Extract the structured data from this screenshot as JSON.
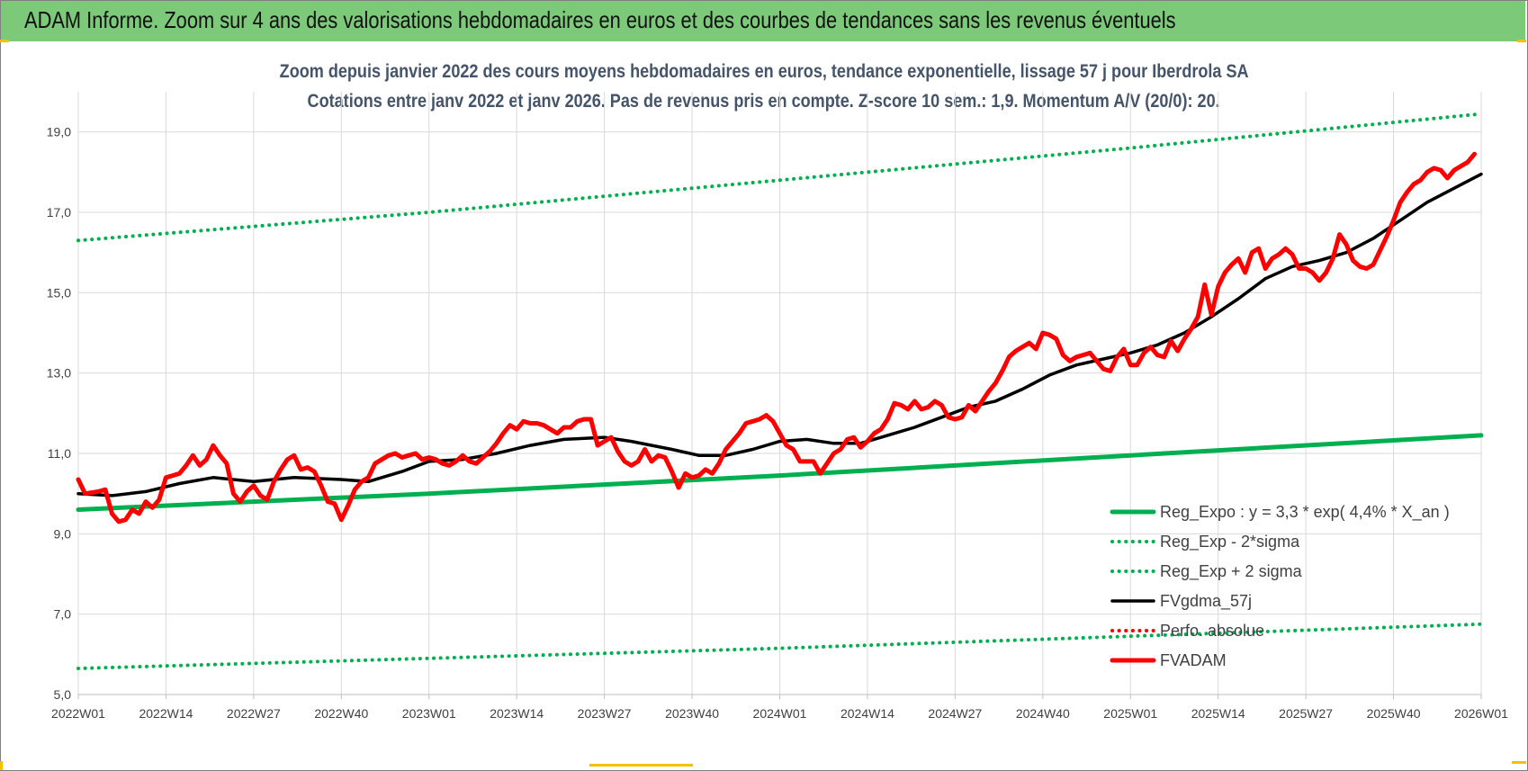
{
  "banner": {
    "title": "ADAM Informe. Zoom sur 4 ans des valorisations hebdomadaires en euros et des courbes de tendances sans les revenus éventuels"
  },
  "colors": {
    "banner": "#7dc97a",
    "trend": "#00b050",
    "bands": "#00b050",
    "smooth": "#000000",
    "perfo": "#ff0000",
    "price": "#ff0000",
    "title_text": "#44546a"
  },
  "chart_data": {
    "type": "line",
    "title": "Zoom depuis janvier 2022 des cours moyens hebdomadaires en euros, tendance exponentielle, lissage 57 j pour Iberdrola SA",
    "subtitle": "Cotations entre janv 2022 et janv 2026. Pas de revenus pris en compte. Z-score 10 sem.: 1,9. Momentum A/V (20/0): 20.",
    "ylim": [
      5,
      20
    ],
    "y_ticks": [
      "5,0",
      "7,0",
      "9,0",
      "11,0",
      "13,0",
      "15,0",
      "17,0",
      "19,0"
    ],
    "x_ticks": [
      "2022W01",
      "2022W14",
      "2022W27",
      "2022W40",
      "2023W01",
      "2023W14",
      "2023W27",
      "2023W40",
      "2024W01",
      "2024W14",
      "2024W27",
      "2024W40",
      "2025W01",
      "2025W14",
      "2025W27",
      "2025W40",
      "2026W01"
    ],
    "x_range_weeks": [
      0,
      208
    ],
    "grid": true,
    "legend_position": "bottom-right",
    "series": [
      {
        "name": "Reg_Expo : y = 3,3 * exp( 4,4% *  X_an )",
        "style": "solid-thick",
        "color": "#00b050",
        "points": [
          [
            0,
            9.6
          ],
          [
            52,
            10.0
          ],
          [
            104,
            10.45
          ],
          [
            156,
            10.95
          ],
          [
            208,
            11.45
          ]
        ]
      },
      {
        "name": "Reg_Exp - 2*sigma",
        "style": "dotted",
        "color": "#00b050",
        "points": [
          [
            0,
            5.65
          ],
          [
            52,
            5.9
          ],
          [
            104,
            6.15
          ],
          [
            156,
            6.45
          ],
          [
            208,
            6.75
          ]
        ]
      },
      {
        "name": "Reg_Exp + 2 sigma",
        "style": "dotted",
        "color": "#00b050",
        "points": [
          [
            0,
            16.3
          ],
          [
            52,
            17.0
          ],
          [
            104,
            17.8
          ],
          [
            156,
            18.6
          ],
          [
            208,
            19.45
          ]
        ]
      },
      {
        "name": "FVgdma_57j",
        "style": "solid",
        "color": "#000000",
        "points": [
          [
            0,
            10.0
          ],
          [
            5,
            9.95
          ],
          [
            10,
            10.05
          ],
          [
            15,
            10.25
          ],
          [
            20,
            10.4
          ],
          [
            26,
            10.3
          ],
          [
            32,
            10.4
          ],
          [
            39,
            10.35
          ],
          [
            43,
            10.3
          ],
          [
            48,
            10.55
          ],
          [
            52,
            10.8
          ],
          [
            57,
            10.85
          ],
          [
            62,
            11.0
          ],
          [
            67,
            11.2
          ],
          [
            72,
            11.35
          ],
          [
            78,
            11.4
          ],
          [
            82,
            11.3
          ],
          [
            88,
            11.1
          ],
          [
            92,
            10.95
          ],
          [
            96,
            10.95
          ],
          [
            100,
            11.1
          ],
          [
            104,
            11.3
          ],
          [
            108,
            11.35
          ],
          [
            112,
            11.25
          ],
          [
            116,
            11.25
          ],
          [
            120,
            11.45
          ],
          [
            124,
            11.65
          ],
          [
            128,
            11.9
          ],
          [
            132,
            12.15
          ],
          [
            136,
            12.3
          ],
          [
            140,
            12.6
          ],
          [
            144,
            12.95
          ],
          [
            148,
            13.2
          ],
          [
            152,
            13.35
          ],
          [
            156,
            13.5
          ],
          [
            160,
            13.7
          ],
          [
            164,
            14.0
          ],
          [
            168,
            14.4
          ],
          [
            172,
            14.85
          ],
          [
            176,
            15.35
          ],
          [
            180,
            15.65
          ],
          [
            184,
            15.8
          ],
          [
            188,
            16.0
          ],
          [
            192,
            16.35
          ],
          [
            196,
            16.8
          ],
          [
            200,
            17.25
          ],
          [
            204,
            17.6
          ],
          [
            208,
            17.95
          ]
        ]
      },
      {
        "name": "Perfo. absolue",
        "style": "dotted",
        "color": "#ff0000",
        "points": []
      },
      {
        "name": "FVADAM",
        "style": "solid-thick",
        "color": "#ff0000",
        "points": [
          [
            0,
            10.35
          ],
          [
            1,
            10.0
          ],
          [
            3,
            10.05
          ],
          [
            4,
            10.1
          ],
          [
            5,
            9.5
          ],
          [
            6,
            9.3
          ],
          [
            7,
            9.35
          ],
          [
            8,
            9.6
          ],
          [
            9,
            9.5
          ],
          [
            10,
            9.8
          ],
          [
            11,
            9.65
          ],
          [
            12,
            9.85
          ],
          [
            13,
            10.4
          ],
          [
            14,
            10.45
          ],
          [
            15,
            10.5
          ],
          [
            16,
            10.7
          ],
          [
            17,
            10.95
          ],
          [
            18,
            10.7
          ],
          [
            19,
            10.85
          ],
          [
            20,
            11.2
          ],
          [
            21,
            10.95
          ],
          [
            22,
            10.75
          ],
          [
            23,
            10.0
          ],
          [
            24,
            9.8
          ],
          [
            25,
            10.05
          ],
          [
            26,
            10.2
          ],
          [
            27,
            9.95
          ],
          [
            28,
            9.85
          ],
          [
            29,
            10.3
          ],
          [
            30,
            10.6
          ],
          [
            31,
            10.85
          ],
          [
            32,
            10.95
          ],
          [
            33,
            10.6
          ],
          [
            34,
            10.65
          ],
          [
            35,
            10.55
          ],
          [
            36,
            10.2
          ],
          [
            37,
            9.8
          ],
          [
            38,
            9.75
          ],
          [
            39,
            9.35
          ],
          [
            40,
            9.7
          ],
          [
            41,
            10.1
          ],
          [
            42,
            10.3
          ],
          [
            43,
            10.4
          ],
          [
            44,
            10.75
          ],
          [
            45,
            10.85
          ],
          [
            46,
            10.95
          ],
          [
            47,
            11.0
          ],
          [
            48,
            10.9
          ],
          [
            49,
            10.95
          ],
          [
            50,
            11.0
          ],
          [
            51,
            10.85
          ],
          [
            52,
            10.9
          ],
          [
            53,
            10.85
          ],
          [
            54,
            10.75
          ],
          [
            55,
            10.7
          ],
          [
            56,
            10.8
          ],
          [
            57,
            10.95
          ],
          [
            58,
            10.8
          ],
          [
            59,
            10.75
          ],
          [
            60,
            10.9
          ],
          [
            61,
            11.05
          ],
          [
            62,
            11.25
          ],
          [
            63,
            11.5
          ],
          [
            64,
            11.7
          ],
          [
            65,
            11.6
          ],
          [
            66,
            11.8
          ],
          [
            67,
            11.75
          ],
          [
            68,
            11.75
          ],
          [
            69,
            11.7
          ],
          [
            70,
            11.6
          ],
          [
            71,
            11.5
          ],
          [
            72,
            11.65
          ],
          [
            73,
            11.65
          ],
          [
            74,
            11.8
          ],
          [
            75,
            11.85
          ],
          [
            76,
            11.85
          ],
          [
            77,
            11.2
          ],
          [
            78,
            11.3
          ],
          [
            79,
            11.4
          ],
          [
            80,
            11.05
          ],
          [
            81,
            10.8
          ],
          [
            82,
            10.7
          ],
          [
            83,
            10.8
          ],
          [
            84,
            11.1
          ],
          [
            85,
            10.8
          ],
          [
            86,
            10.95
          ],
          [
            87,
            10.9
          ],
          [
            88,
            10.55
          ],
          [
            89,
            10.15
          ],
          [
            90,
            10.5
          ],
          [
            91,
            10.4
          ],
          [
            92,
            10.45
          ],
          [
            93,
            10.6
          ],
          [
            94,
            10.5
          ],
          [
            95,
            10.75
          ],
          [
            96,
            11.1
          ],
          [
            97,
            11.3
          ],
          [
            98,
            11.5
          ],
          [
            99,
            11.75
          ],
          [
            100,
            11.8
          ],
          [
            101,
            11.85
          ],
          [
            102,
            11.95
          ],
          [
            103,
            11.8
          ],
          [
            104,
            11.5
          ],
          [
            105,
            11.2
          ],
          [
            106,
            11.1
          ],
          [
            107,
            10.8
          ],
          [
            108,
            10.8
          ],
          [
            109,
            10.8
          ],
          [
            110,
            10.5
          ],
          [
            111,
            10.75
          ],
          [
            112,
            11.0
          ],
          [
            113,
            11.1
          ],
          [
            114,
            11.35
          ],
          [
            115,
            11.4
          ],
          [
            116,
            11.15
          ],
          [
            117,
            11.3
          ],
          [
            118,
            11.5
          ],
          [
            119,
            11.6
          ],
          [
            120,
            11.85
          ],
          [
            121,
            12.25
          ],
          [
            122,
            12.2
          ],
          [
            123,
            12.1
          ],
          [
            124,
            12.3
          ],
          [
            125,
            12.1
          ],
          [
            126,
            12.15
          ],
          [
            127,
            12.3
          ],
          [
            128,
            12.2
          ],
          [
            129,
            11.9
          ],
          [
            130,
            11.85
          ],
          [
            131,
            11.9
          ],
          [
            132,
            12.2
          ],
          [
            133,
            12.05
          ],
          [
            134,
            12.3
          ],
          [
            135,
            12.55
          ],
          [
            136,
            12.75
          ],
          [
            137,
            13.05
          ],
          [
            138,
            13.4
          ],
          [
            139,
            13.55
          ],
          [
            140,
            13.65
          ],
          [
            141,
            13.75
          ],
          [
            142,
            13.6
          ],
          [
            143,
            14.0
          ],
          [
            144,
            13.95
          ],
          [
            145,
            13.85
          ],
          [
            146,
            13.45
          ],
          [
            147,
            13.3
          ],
          [
            148,
            13.4
          ],
          [
            149,
            13.45
          ],
          [
            150,
            13.5
          ],
          [
            151,
            13.3
          ],
          [
            152,
            13.1
          ],
          [
            153,
            13.05
          ],
          [
            154,
            13.4
          ],
          [
            155,
            13.6
          ],
          [
            156,
            13.2
          ],
          [
            157,
            13.2
          ],
          [
            158,
            13.5
          ],
          [
            159,
            13.65
          ],
          [
            160,
            13.45
          ],
          [
            161,
            13.4
          ],
          [
            162,
            13.8
          ],
          [
            163,
            13.55
          ],
          [
            164,
            13.85
          ],
          [
            165,
            14.1
          ],
          [
            166,
            14.4
          ],
          [
            167,
            15.2
          ],
          [
            168,
            14.45
          ],
          [
            169,
            15.15
          ],
          [
            170,
            15.5
          ],
          [
            171,
            15.7
          ],
          [
            172,
            15.85
          ],
          [
            173,
            15.5
          ],
          [
            174,
            16.0
          ],
          [
            175,
            16.1
          ],
          [
            176,
            15.6
          ],
          [
            177,
            15.85
          ],
          [
            178,
            15.95
          ],
          [
            179,
            16.1
          ],
          [
            180,
            15.95
          ],
          [
            181,
            15.6
          ],
          [
            182,
            15.6
          ],
          [
            183,
            15.5
          ],
          [
            184,
            15.3
          ],
          [
            185,
            15.5
          ],
          [
            186,
            15.85
          ],
          [
            187,
            16.45
          ],
          [
            188,
            16.2
          ],
          [
            189,
            15.8
          ],
          [
            190,
            15.65
          ],
          [
            191,
            15.6
          ],
          [
            192,
            15.7
          ],
          [
            193,
            16.05
          ],
          [
            194,
            16.4
          ],
          [
            195,
            16.8
          ],
          [
            196,
            17.25
          ],
          [
            197,
            17.5
          ],
          [
            198,
            17.7
          ],
          [
            199,
            17.8
          ],
          [
            200,
            18.0
          ],
          [
            201,
            18.1
          ],
          [
            202,
            18.05
          ],
          [
            203,
            17.85
          ],
          [
            204,
            18.05
          ],
          [
            205,
            18.15
          ],
          [
            206,
            18.25
          ],
          [
            207,
            18.45
          ]
        ]
      }
    ]
  }
}
